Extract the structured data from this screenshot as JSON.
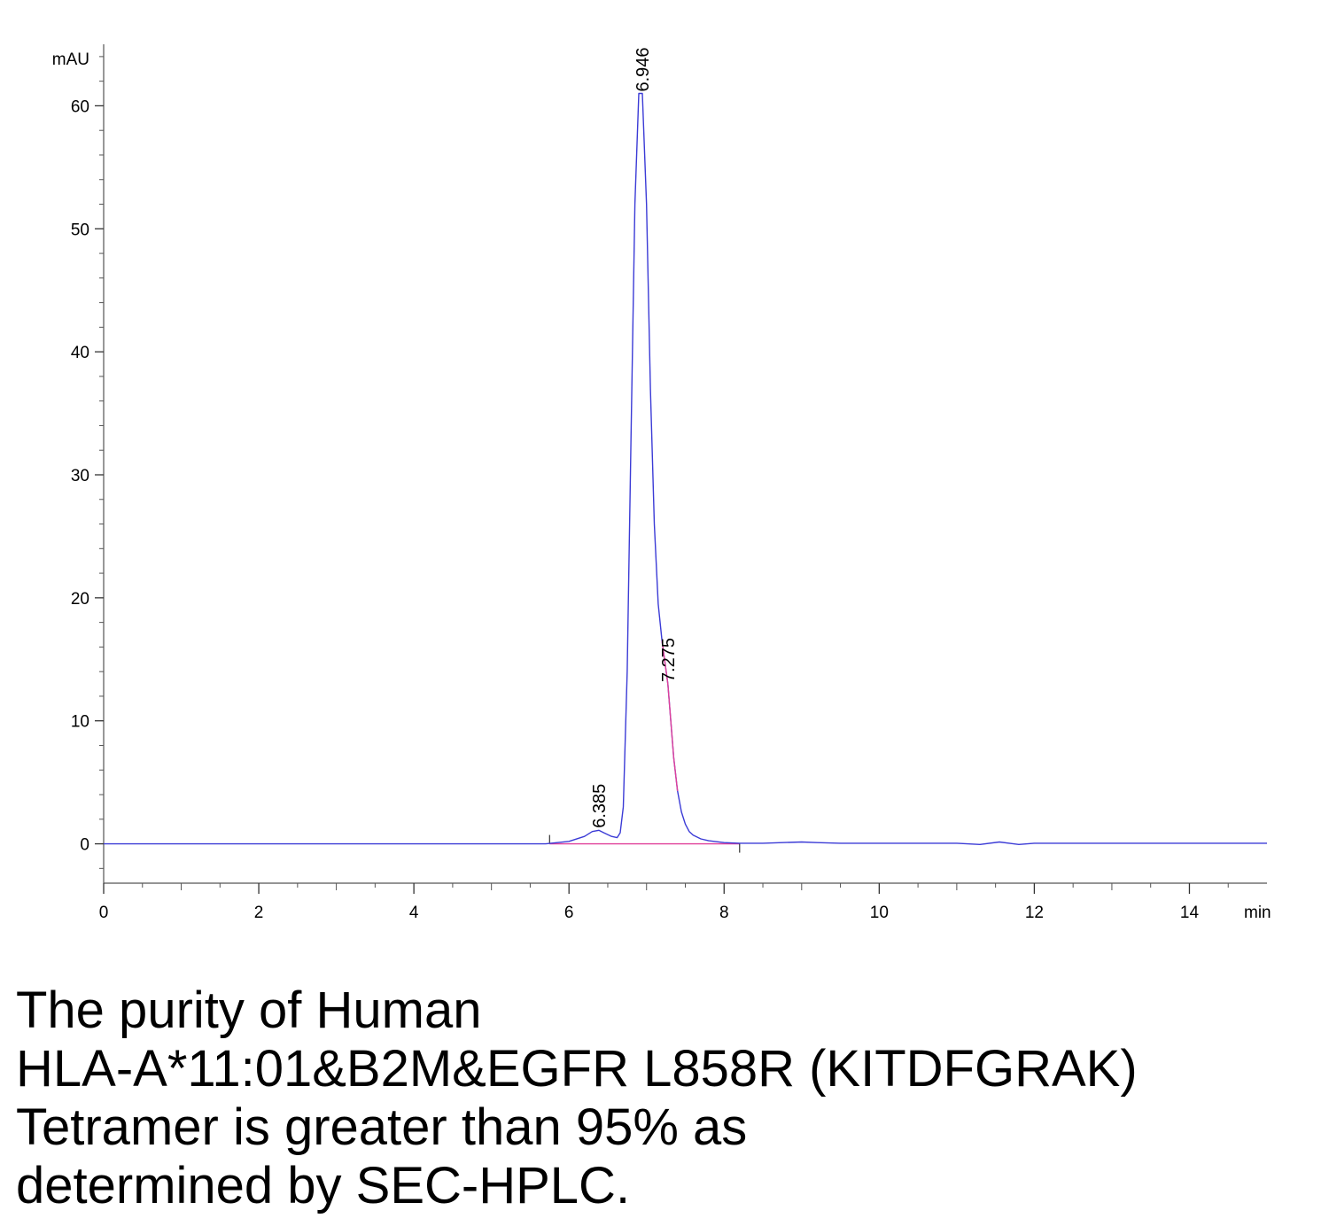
{
  "chart_data": {
    "type": "line",
    "title": "",
    "xlabel": "",
    "ylabel": "",
    "x_unit": "min",
    "y_unit": "mAU",
    "xlim": [
      0,
      15
    ],
    "ylim": [
      -3.2,
      65
    ],
    "x_ticks": [
      0,
      2,
      4,
      6,
      8,
      10,
      12,
      14
    ],
    "y_ticks": [
      0,
      10,
      20,
      30,
      40,
      50,
      60
    ],
    "grid": false,
    "series": [
      {
        "color": "#3b3bd6",
        "x": [
          0,
          5.7,
          6.0,
          6.2,
          6.3,
          6.385,
          6.45,
          6.55,
          6.62,
          6.66,
          6.7,
          6.75,
          6.8,
          6.85,
          6.9,
          6.946,
          7.0,
          7.05,
          7.1,
          7.15,
          7.2,
          7.275,
          7.35,
          7.4,
          7.45,
          7.5,
          7.55,
          7.6,
          7.7,
          7.8,
          8.0,
          8.2,
          8.5,
          9.0,
          9.2,
          9.5,
          10.0,
          10.5,
          11.0,
          11.3,
          11.55,
          11.8,
          12.0,
          13.0,
          14.0,
          15.0
        ],
        "y": [
          0,
          0,
          0.2,
          0.6,
          1.0,
          1.1,
          0.9,
          0.6,
          0.5,
          0.9,
          3,
          14,
          33,
          52,
          61,
          61,
          52,
          37,
          26,
          19.5,
          16.5,
          13,
          7,
          4.3,
          2.6,
          1.6,
          1.0,
          0.7,
          0.4,
          0.25,
          0.1,
          0.05,
          0.05,
          0.15,
          0.1,
          0.05,
          0.05,
          0.05,
          0.05,
          -0.05,
          0.15,
          -0.05,
          0.05,
          0.05,
          0.05,
          0.05
        ]
      }
    ],
    "baseline": {
      "color": "#e0409a",
      "x": [
        5.75,
        8.2
      ],
      "y": [
        0,
        0
      ]
    },
    "peak_labels": [
      {
        "text": "6.385",
        "x": 6.385,
        "y": 1.1
      },
      {
        "text": "6.946",
        "x": 6.946,
        "y": 61
      },
      {
        "text": "7.275",
        "x": 7.275,
        "y": 13
      }
    ]
  },
  "caption": {
    "lines": [
      "The purity of Human",
      "HLA-A*11:01&B2M&EGFR L858R (KITDFGRAK)",
      "Tetramer is greater than 95% as",
      "determined by SEC-HPLC."
    ]
  }
}
